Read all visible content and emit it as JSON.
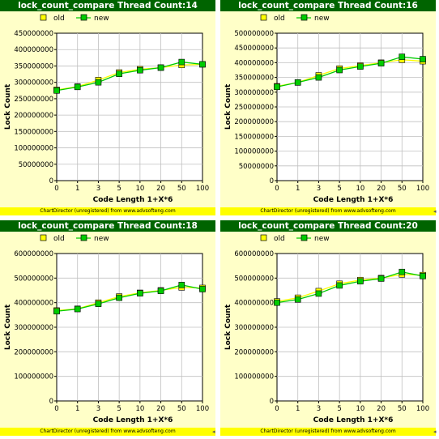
{
  "footer_text": "ChartDirector (unregistered) from www.advsofteng.com",
  "legend": {
    "old_label": "old",
    "new_label": "new"
  },
  "colors": {
    "panel_bg": "#ffffc8",
    "title_bg": "#006400",
    "footer_bg": "#ffff00",
    "old_marker": "#ffff00",
    "new_marker": "#00cc00",
    "grid": "#c0c0c0"
  },
  "chart_data": [
    {
      "type": "line",
      "title": "lock_count_compare Thread Count:14",
      "xlabel": "Code Length 1+X*6",
      "ylabel": "Lock Count",
      "categories": [
        "0",
        "1",
        "3",
        "5",
        "10",
        "20",
        "50",
        "100"
      ],
      "ylim": [
        0,
        450000000
      ],
      "yticks": [
        "0",
        "50000000",
        "100000000",
        "150000000",
        "200000000",
        "250000000",
        "300000000",
        "350000000",
        "400000000",
        "450000000"
      ],
      "legend_position": "top-left",
      "grid": true,
      "series": [
        {
          "name": "old",
          "values": [
            277000000,
            287000000,
            307000000,
            330000000,
            340000000,
            345000000,
            353000000,
            355000000
          ]
        },
        {
          "name": "new",
          "values": [
            275000000,
            286000000,
            300000000,
            326000000,
            337000000,
            345000000,
            362000000,
            355000000
          ]
        }
      ]
    },
    {
      "type": "line",
      "title": "lock_count_compare Thread Count:16",
      "xlabel": "Code Length 1+X*6",
      "ylabel": "Lock Count",
      "categories": [
        "0",
        "1",
        "3",
        "5",
        "10",
        "20",
        "50",
        "100"
      ],
      "ylim": [
        0,
        500000000
      ],
      "yticks": [
        "0",
        "50000000",
        "100000000",
        "150000000",
        "200000000",
        "250000000",
        "300000000",
        "350000000",
        "400000000",
        "450000000",
        "500000000"
      ],
      "legend_position": "top-left",
      "grid": true,
      "series": [
        {
          "name": "old",
          "values": [
            320000000,
            333000000,
            357000000,
            380000000,
            390000000,
            400000000,
            410000000,
            405000000
          ]
        },
        {
          "name": "new",
          "values": [
            318000000,
            333000000,
            350000000,
            375000000,
            387000000,
            398000000,
            420000000,
            412000000
          ]
        }
      ]
    },
    {
      "type": "line",
      "title": "lock_count_compare Thread Count:18",
      "xlabel": "Code Length 1+X*6",
      "ylabel": "Lock Count",
      "categories": [
        "0",
        "1",
        "3",
        "5",
        "10",
        "20",
        "50",
        "100"
      ],
      "ylim": [
        0,
        600000000
      ],
      "yticks": [
        "0",
        "100000000",
        "200000000",
        "300000000",
        "400000000",
        "500000000",
        "600000000"
      ],
      "legend_position": "top-left",
      "grid": true,
      "series": [
        {
          "name": "old",
          "values": [
            368000000,
            375000000,
            400000000,
            425000000,
            440000000,
            450000000,
            462000000,
            460000000
          ]
        },
        {
          "name": "new",
          "values": [
            365000000,
            374000000,
            395000000,
            420000000,
            438000000,
            448000000,
            472000000,
            455000000
          ]
        }
      ]
    },
    {
      "type": "line",
      "title": "lock_count_compare Thread Count:20",
      "xlabel": "Code Length 1+X*6",
      "ylabel": "Lock Count",
      "categories": [
        "0",
        "1",
        "3",
        "5",
        "10",
        "20",
        "50",
        "100"
      ],
      "ylim": [
        0,
        600000000
      ],
      "yticks": [
        "0",
        "100000000",
        "200000000",
        "300000000",
        "400000000",
        "500000000",
        "600000000"
      ],
      "legend_position": "top-left",
      "grid": true,
      "series": [
        {
          "name": "old",
          "values": [
            405000000,
            420000000,
            447000000,
            477000000,
            492000000,
            500000000,
            515000000,
            512000000
          ]
        },
        {
          "name": "new",
          "values": [
            400000000,
            413000000,
            437000000,
            470000000,
            487000000,
            498000000,
            525000000,
            508000000
          ]
        }
      ]
    }
  ]
}
